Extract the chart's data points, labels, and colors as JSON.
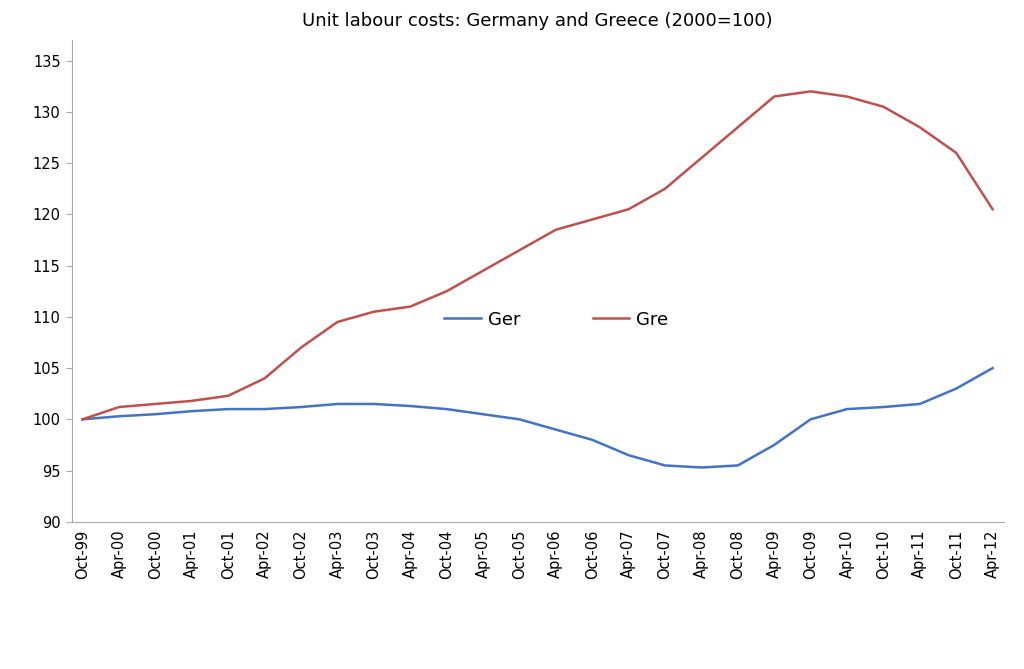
{
  "title": "Unit labour costs: Germany and Greece (2000=100)",
  "x_labels": [
    "Oct-99",
    "Apr-00",
    "Oct-00",
    "Apr-01",
    "Oct-01",
    "Apr-02",
    "Oct-02",
    "Apr-03",
    "Oct-03",
    "Apr-04",
    "Oct-04",
    "Apr-05",
    "Oct-05",
    "Apr-06",
    "Oct-06",
    "Apr-07",
    "Oct-07",
    "Apr-08",
    "Oct-08",
    "Apr-09",
    "Oct-09",
    "Apr-10",
    "Oct-10",
    "Apr-11",
    "Oct-11",
    "Apr-12"
  ],
  "germany": [
    100.0,
    100.3,
    100.5,
    100.8,
    101.0,
    101.0,
    101.2,
    101.5,
    101.5,
    101.3,
    101.0,
    100.5,
    100.0,
    99.0,
    98.0,
    96.5,
    95.5,
    95.3,
    95.5,
    97.5,
    100.0,
    101.0,
    101.2,
    101.5,
    103.0,
    105.0
  ],
  "greece": [
    100.0,
    101.2,
    101.5,
    101.8,
    102.3,
    104.0,
    107.0,
    109.5,
    110.5,
    111.0,
    112.5,
    114.5,
    116.5,
    118.5,
    119.5,
    120.5,
    122.5,
    125.5,
    128.5,
    131.5,
    132.0,
    131.5,
    130.5,
    128.5,
    126.0,
    120.5
  ],
  "germany_color": "#4472C4",
  "greece_color": "#C0504D",
  "line_width": 1.8,
  "ylim": [
    90,
    137
  ],
  "yticks": [
    90,
    95,
    100,
    105,
    110,
    115,
    120,
    125,
    130,
    135
  ],
  "legend_labels": [
    "Ger",
    "Gre"
  ],
  "title_fontsize": 13,
  "tick_fontsize": 10.5,
  "bg_color": "#ffffff"
}
